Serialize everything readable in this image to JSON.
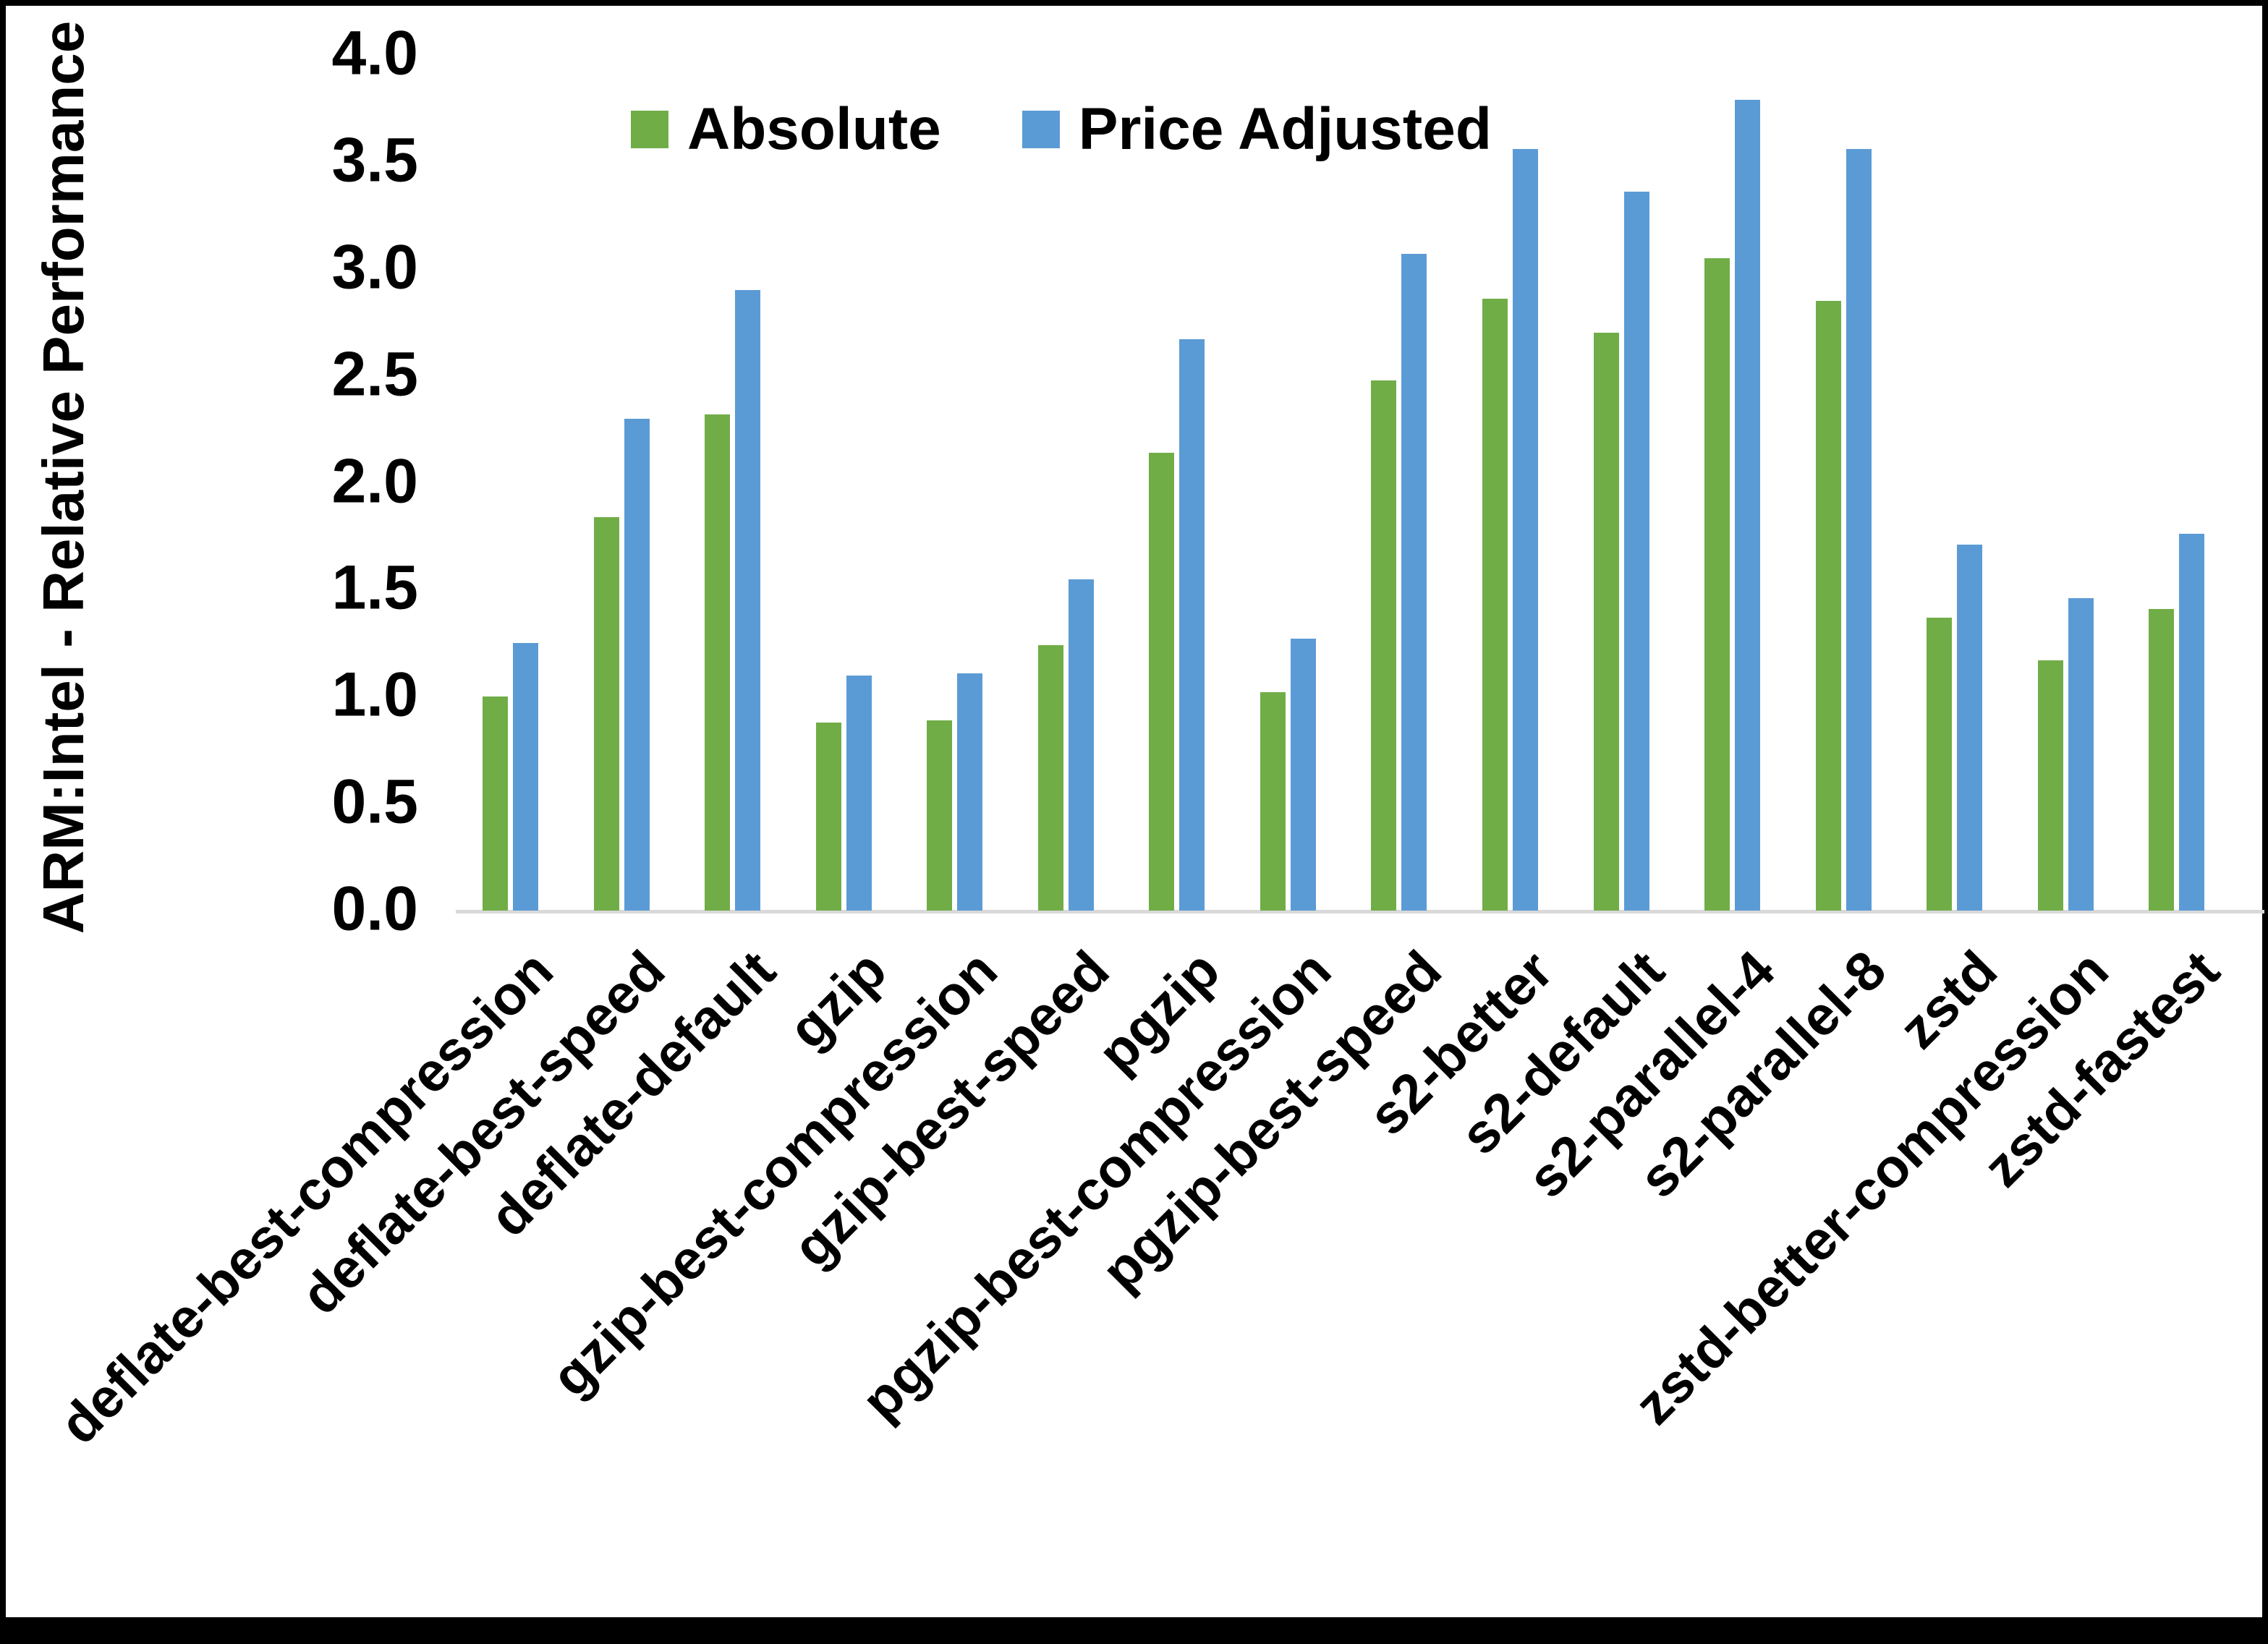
{
  "chart_data": {
    "type": "bar",
    "title": "",
    "ylabel": "ARM:Intel - Relative Performance",
    "xlabel": "",
    "ylim": [
      0.0,
      4.0
    ],
    "ytick_labels": [
      "0.0",
      "0.5",
      "1.0",
      "1.5",
      "2.0",
      "2.5",
      "3.0",
      "3.5",
      "4.0"
    ],
    "grid": false,
    "legend_position": "top-center",
    "categories": [
      "deflate-best-compression",
      "deflate-best-speed",
      "deflate-default",
      "gzip",
      "gzip-best-compression",
      "gzip-best-speed",
      "pgzip",
      "pgzip-best-compression",
      "pgzip-best-speed",
      "s2-better",
      "s2-default",
      "s2-parallel-4",
      "s2-parallel-8",
      "zstd",
      "zstd-better-compression",
      "zstd-fastest"
    ],
    "series": [
      {
        "name": "Absolute",
        "color": "#70AD47",
        "values": [
          1.0,
          1.84,
          2.32,
          0.88,
          0.89,
          1.24,
          2.14,
          1.02,
          2.48,
          2.86,
          2.7,
          3.05,
          2.85,
          1.37,
          1.17,
          1.41
        ]
      },
      {
        "name": "Price Adjusted",
        "color": "#5B9BD5",
        "values": [
          1.25,
          2.3,
          2.9,
          1.1,
          1.11,
          1.55,
          2.67,
          1.27,
          3.07,
          3.56,
          3.36,
          3.79,
          3.56,
          1.71,
          1.46,
          1.76
        ]
      }
    ],
    "axis_line_color": "#D9D9D9"
  }
}
